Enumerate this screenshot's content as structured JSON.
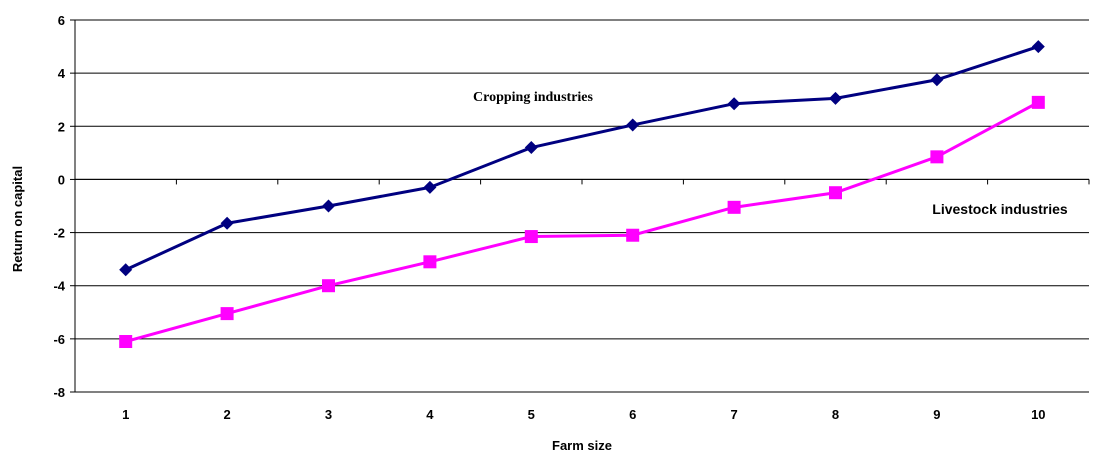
{
  "chart_data": {
    "type": "line",
    "title": "",
    "xlabel": "Farm size",
    "ylabel": "Return on capital",
    "categories": [
      "1",
      "2",
      "3",
      "4",
      "5",
      "6",
      "7",
      "8",
      "9",
      "10"
    ],
    "ylim": [
      -8,
      6
    ],
    "yticks": [
      "6",
      "4",
      "2",
      "0",
      "-2",
      "-4",
      "-6",
      "-8"
    ],
    "grid": "horizontal",
    "legend": "none",
    "series": [
      {
        "name": "Cropping industries",
        "color": "#000080",
        "marker": "diamond",
        "values": [
          -3.4,
          -1.65,
          -1.0,
          -0.3,
          1.2,
          2.05,
          2.85,
          3.05,
          3.75,
          5.0
        ]
      },
      {
        "name": "Livestock industries",
        "color": "#FF00FF",
        "marker": "square",
        "values": [
          -6.1,
          -5.05,
          -4.0,
          -3.1,
          -2.15,
          -2.1,
          -1.05,
          -0.5,
          0.85,
          2.9
        ]
      }
    ],
    "annotations": [
      "Cropping industries",
      "Livestock industries"
    ]
  }
}
